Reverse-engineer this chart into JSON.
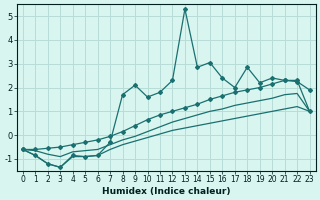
{
  "xlabel": "Humidex (Indice chaleur)",
  "xlim": [
    -0.5,
    23.5
  ],
  "ylim": [
    -1.5,
    5.5
  ],
  "yticks": [
    -1,
    0,
    1,
    2,
    3,
    4,
    5
  ],
  "xticks": [
    0,
    1,
    2,
    3,
    4,
    5,
    6,
    7,
    8,
    9,
    10,
    11,
    12,
    13,
    14,
    15,
    16,
    17,
    18,
    19,
    20,
    21,
    22,
    23
  ],
  "background_color": "#d8f5f0",
  "grid_color": "#b8ddd8",
  "line_color": "#1a7070",
  "spiky_x": [
    0,
    1,
    2,
    3,
    4,
    5,
    6,
    7,
    8,
    9,
    10,
    11,
    12,
    13,
    14,
    15,
    16,
    17,
    18,
    19,
    20,
    21,
    22,
    23
  ],
  "spiky_y": [
    -0.6,
    -0.85,
    -1.2,
    -1.35,
    -0.85,
    -0.9,
    -0.85,
    -0.3,
    1.7,
    2.1,
    1.6,
    1.8,
    2.3,
    5.3,
    2.85,
    3.05,
    2.4,
    2.0,
    2.85,
    2.2,
    2.4,
    2.3,
    2.25,
    1.9
  ],
  "upper_x": [
    0,
    1,
    2,
    3,
    4,
    5,
    6,
    7,
    8,
    9,
    10,
    11,
    12,
    13,
    14,
    15,
    16,
    17,
    18,
    19,
    20,
    21,
    22,
    23
  ],
  "upper_y": [
    -0.6,
    -0.6,
    -0.55,
    -0.5,
    -0.4,
    -0.3,
    -0.2,
    -0.05,
    0.15,
    0.4,
    0.65,
    0.85,
    1.0,
    1.15,
    1.3,
    1.5,
    1.65,
    1.8,
    1.9,
    2.0,
    2.15,
    2.3,
    2.3,
    1.0
  ],
  "mid_x": [
    0,
    1,
    2,
    3,
    4,
    5,
    6,
    7,
    8,
    9,
    10,
    11,
    12,
    13,
    14,
    15,
    16,
    17,
    18,
    19,
    20,
    21,
    22,
    23
  ],
  "mid_y": [
    -0.6,
    -0.65,
    -0.8,
    -0.9,
    -0.7,
    -0.65,
    -0.6,
    -0.4,
    -0.2,
    -0.05,
    0.15,
    0.35,
    0.55,
    0.7,
    0.85,
    1.0,
    1.1,
    1.25,
    1.35,
    1.45,
    1.55,
    1.7,
    1.75,
    1.0
  ],
  "lower_x": [
    0,
    1,
    2,
    3,
    4,
    5,
    6,
    7,
    8,
    9,
    10,
    11,
    12,
    13,
    14,
    15,
    16,
    17,
    18,
    19,
    20,
    21,
    22,
    23
  ],
  "lower_y": [
    -0.6,
    -0.85,
    -1.2,
    -1.35,
    -0.9,
    -0.9,
    -0.85,
    -0.6,
    -0.4,
    -0.25,
    -0.1,
    0.05,
    0.2,
    0.3,
    0.4,
    0.5,
    0.6,
    0.7,
    0.8,
    0.9,
    1.0,
    1.1,
    1.2,
    1.0
  ]
}
